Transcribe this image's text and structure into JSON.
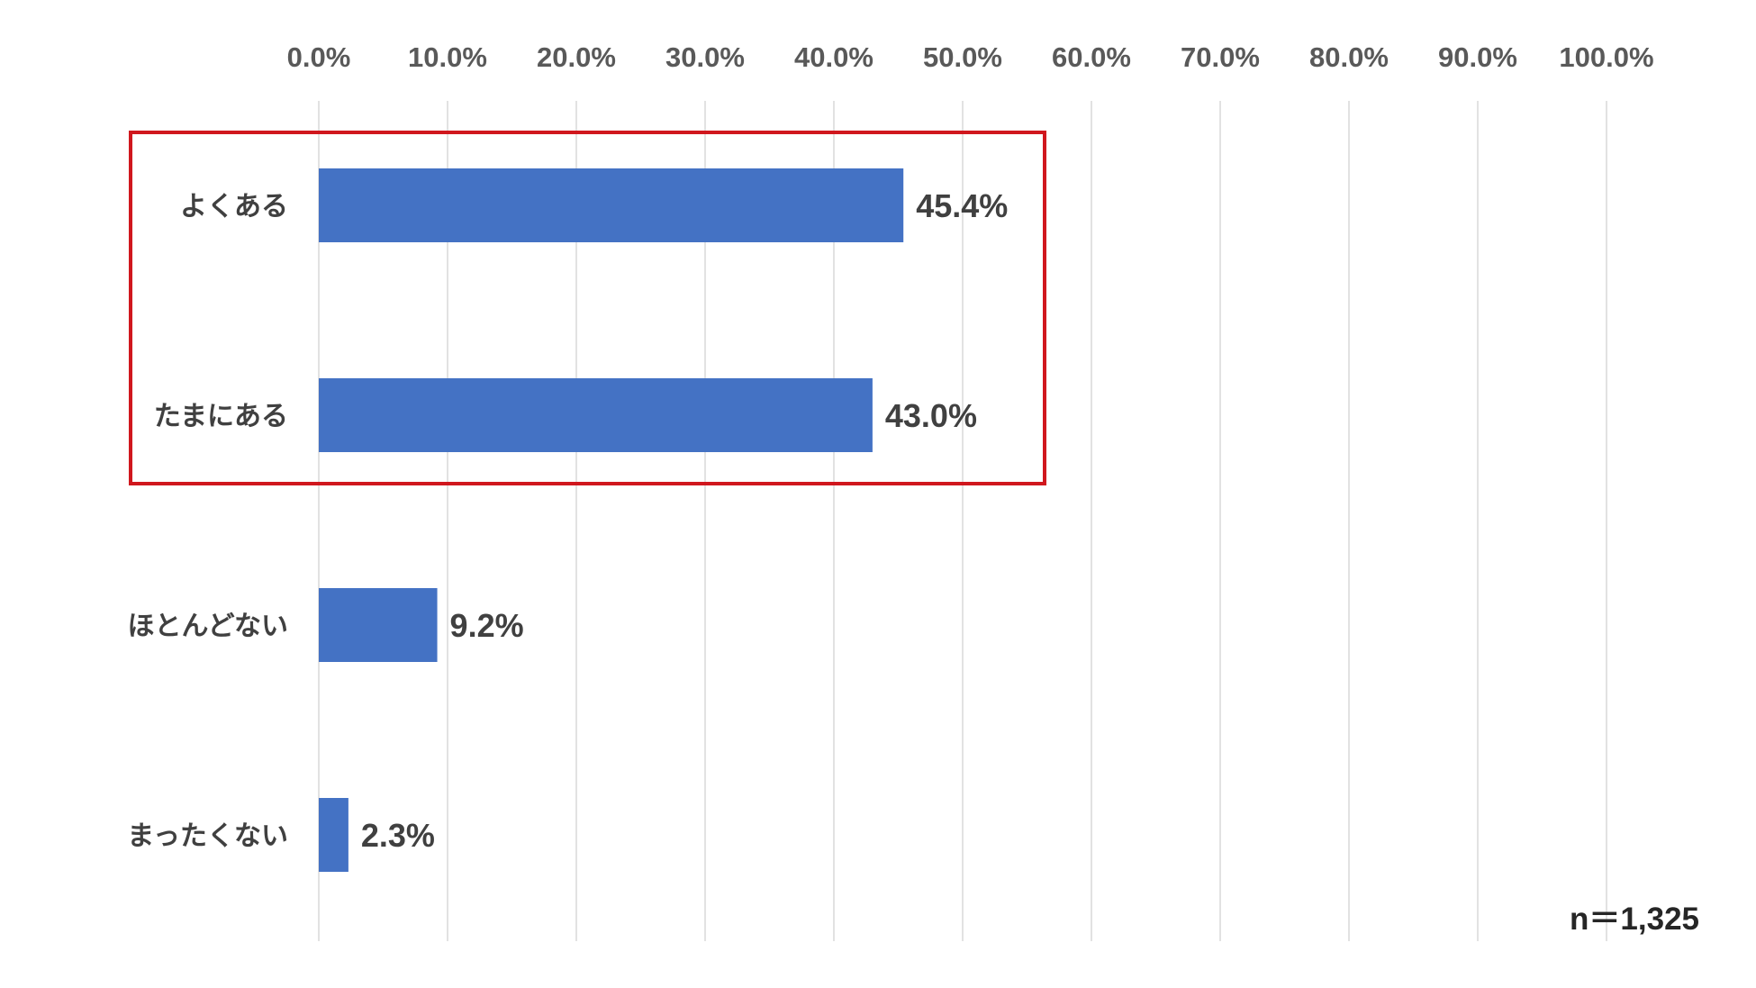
{
  "chart_data": {
    "type": "bar",
    "orientation": "horizontal",
    "categories": [
      "よくある",
      "たまにある",
      "ほとんどない",
      "まったくない"
    ],
    "values": [
      45.4,
      43.0,
      9.2,
      2.3
    ],
    "value_labels": [
      "45.4%",
      "43.0%",
      "9.2%",
      "2.3%"
    ],
    "xlim": [
      0,
      100
    ],
    "ticks": [
      "0.0%",
      "10.0%",
      "20.0%",
      "30.0%",
      "40.0%",
      "50.0%",
      "60.0%",
      "70.0%",
      "80.0%",
      "90.0%",
      "100.0%"
    ],
    "grid": "vertical",
    "axis_position": "top",
    "highlight": {
      "categories": [
        "よくある",
        "たまにある"
      ],
      "color": "#d0171e"
    },
    "bar_color": "#4472c4",
    "grid_color": "#d9d9d9",
    "note": "n＝1,325"
  }
}
